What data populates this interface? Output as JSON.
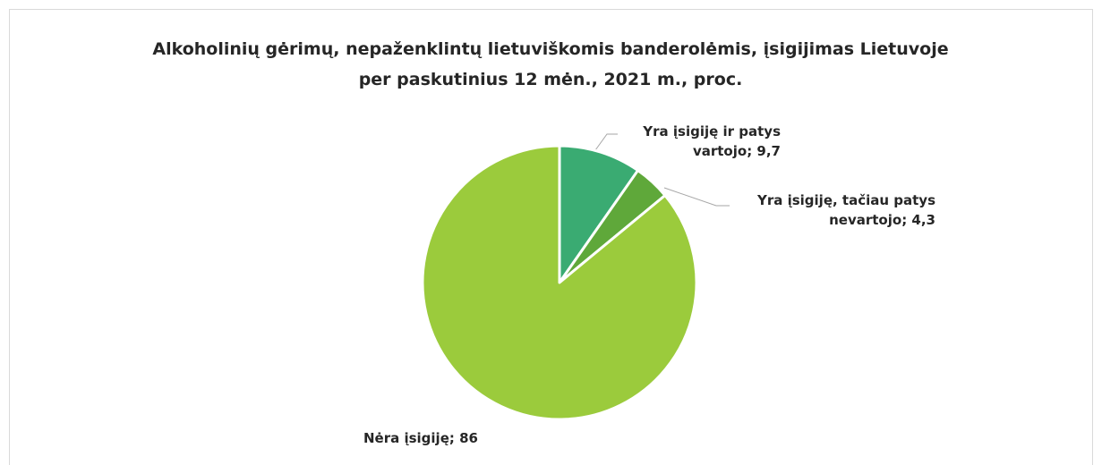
{
  "chart_data": {
    "type": "pie",
    "title": "Alkoholinių gėrimų, nepaženklintų lietuviškomis banderolėmis, įsigijimas Lietuvoje per paskutinius 12 mėn., 2021 m., proc.",
    "categories": [
      "Yra įsigiję ir patys vartojo",
      "Yra įsigiję, tačiau patys nevartojo",
      "Nėra įsigiję"
    ],
    "values": [
      9.7,
      4.3,
      86
    ],
    "value_labels": [
      "9,7",
      "4,3",
      "86"
    ],
    "label_separator": "; ",
    "colors": [
      "#3aab72",
      "#5fa83a",
      "#9bcb3c"
    ]
  }
}
